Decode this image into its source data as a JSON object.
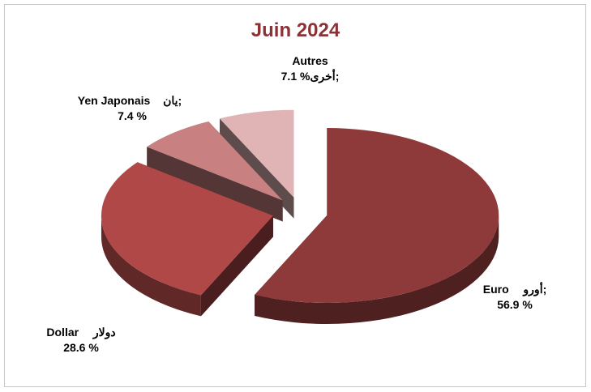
{
  "chart_data": {
    "type": "pie",
    "title": "Juin 2024",
    "exploded": true,
    "three_d": true,
    "slices": [
      {
        "label_fr": "Euro",
        "label_ar": "أورو",
        "value": 56.9,
        "value_text": "56.9 %",
        "color": "#8f3a3a"
      },
      {
        "label_fr": "Dollar",
        "label_ar": "دولار",
        "value": 28.6,
        "value_text": "28.6 %",
        "color": "#b04848"
      },
      {
        "label_fr": "Yen Japonais",
        "label_ar": "يان",
        "value": 7.4,
        "value_text": "7.4 %",
        "color": "#c88080"
      },
      {
        "label_fr": "Autres",
        "label_ar": "أخرى",
        "value": 7.1,
        "value_text": "7.1 %",
        "color": "#e0b4b4"
      }
    ]
  }
}
